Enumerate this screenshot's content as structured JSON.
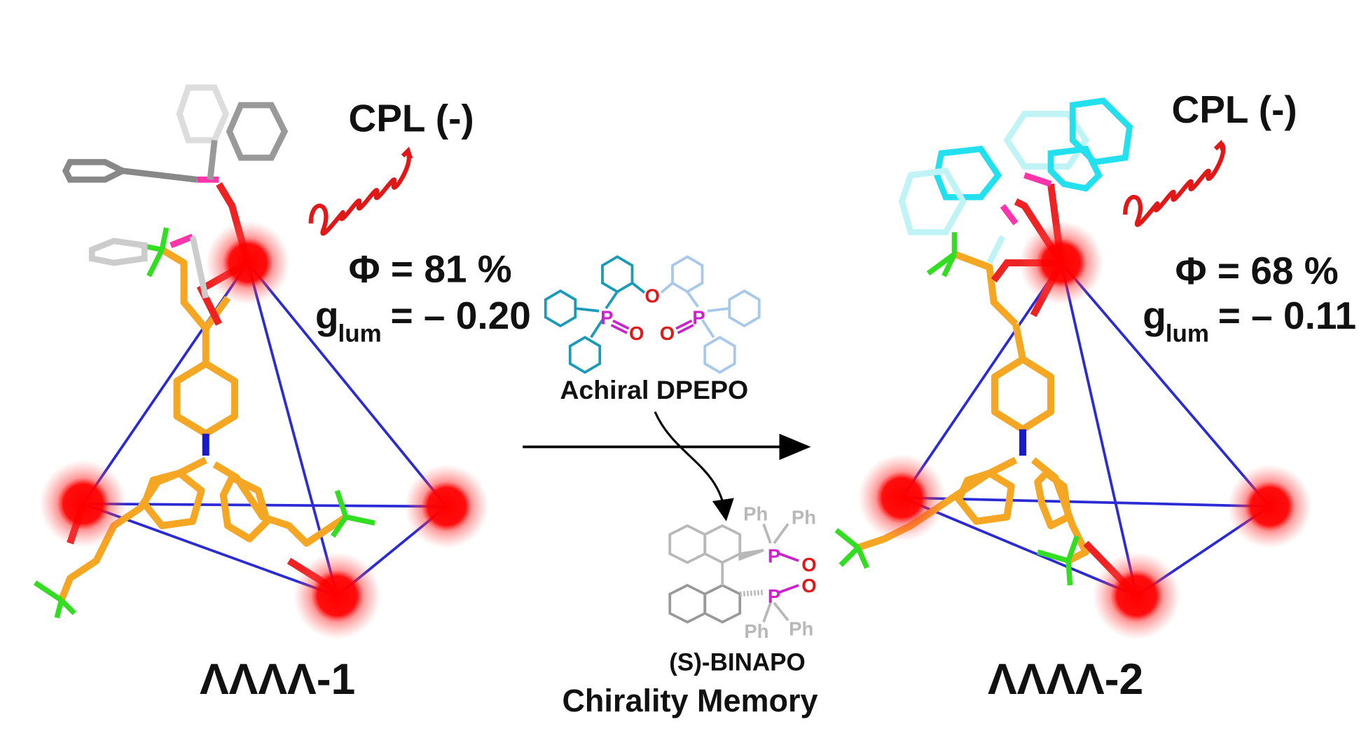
{
  "left": {
    "cpl": "CPL (-)",
    "phi": "Φ = 81 %",
    "glum_g": "g",
    "glum_sub": "lum",
    "glum_value": "= – 0.20",
    "name": "ΛΛΛΛ-1"
  },
  "right": {
    "cpl": "CPL (-)",
    "phi": "Φ = 68 %",
    "glum_g": "g",
    "glum_sub": "lum",
    "glum_value": "= – 0.11",
    "name": "ΛΛΛΛ-2"
  },
  "middle": {
    "dpepo_label": "Achiral DPEPO",
    "binapo_label": "(S)-BINAPO",
    "memory_label": "Chirality Memory",
    "atoms": {
      "P": "P",
      "O": "O",
      "Ph": "Ph"
    }
  },
  "colors": {
    "metal": "#ff0000",
    "edge": "#2b2bd6",
    "ligand": "#f5a623",
    "fluorine": "#33dd22",
    "phosphorus": "#ff33aa",
    "dpepo_dark": "#1a9ab8",
    "dpepo_light": "#a8c8ea",
    "binapo": "#b8b8b8",
    "oxygen": "#e01818",
    "cyan": "#22e0ee"
  }
}
